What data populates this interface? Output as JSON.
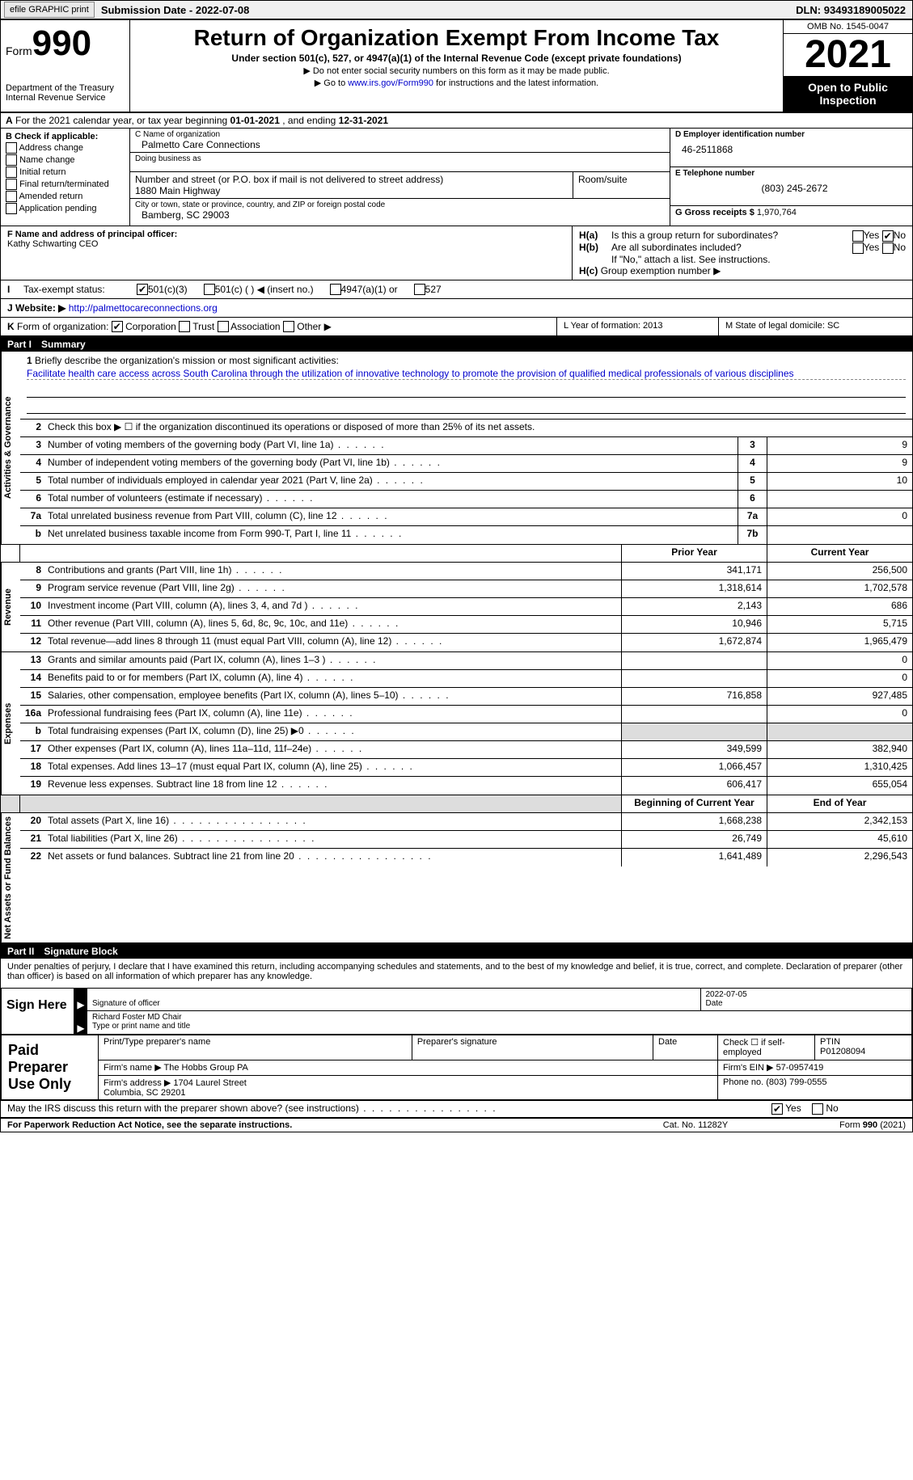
{
  "top": {
    "efile_btn": "efile GRAPHIC print",
    "sub_date_label": "Submission Date - ",
    "sub_date": "2022-07-08",
    "dln_label": "DLN: ",
    "dln": "93493189005022"
  },
  "header": {
    "form_label": "Form",
    "form_num": "990",
    "dept": "Department of the Treasury\nInternal Revenue Service",
    "title": "Return of Organization Exempt From Income Tax",
    "subtitle": "Under section 501(c), 527, or 4947(a)(1) of the Internal Revenue Code (except private foundations)",
    "note1": "▶ Do not enter social security numbers on this form as it may be made public.",
    "note2_pre": "▶ Go to ",
    "note2_link": "www.irs.gov/Form990",
    "note2_post": " for instructions and the latest information.",
    "omb": "OMB No. 1545-0047",
    "year": "2021",
    "inspect": "Open to Public Inspection"
  },
  "section_a": {
    "label_a": "A",
    "text_pre": "For the 2021 calendar year, or tax year beginning ",
    "begin": "01-01-2021",
    "mid": " , and ending ",
    "end": "12-31-2021"
  },
  "col_b": {
    "label": "B Check if applicable:",
    "opts": [
      "Address change",
      "Name change",
      "Initial return",
      "Final return/terminated",
      "Amended return",
      "Application pending"
    ]
  },
  "col_c": {
    "name_lbl": "C Name of organization",
    "name": "Palmetto Care Connections",
    "dba_lbl": "Doing business as",
    "dba": "",
    "addr_lbl": "Number and street (or P.O. box if mail is not delivered to street address)",
    "addr": "1880 Main Highway",
    "room_lbl": "Room/suite",
    "room": "",
    "city_lbl": "City or town, state or province, country, and ZIP or foreign postal code",
    "city": "Bamberg, SC  29003"
  },
  "col_d": {
    "ein_lbl": "D Employer identification number",
    "ein": "46-2511868",
    "phone_lbl": "E Telephone number",
    "phone": "(803) 245-2672",
    "gross_lbl": "G Gross receipts $ ",
    "gross": "1,970,764"
  },
  "row_f": {
    "lbl": "F Name and address of principal officer:",
    "val": "Kathy Schwarting CEO"
  },
  "row_h": {
    "ha_lbl": "H(a)",
    "ha_txt": "Is this a group return for subordinates?",
    "hb_lbl": "H(b)",
    "hb_txt": "Are all subordinates included?",
    "hb_note": "If \"No,\" attach a list. See instructions.",
    "hc_lbl": "H(c)",
    "hc_txt": "Group exemption number ▶",
    "yes": "Yes",
    "no": "No"
  },
  "row_i": {
    "lbl": "I",
    "txt": "Tax-exempt status:",
    "opts": [
      "501(c)(3)",
      "501(c) (  ) ◀ (insert no.)",
      "4947(a)(1) or",
      "527"
    ]
  },
  "row_j": {
    "lbl": "J",
    "txt": "Website: ▶",
    "url": "http://palmettocareconnections.org"
  },
  "row_k": {
    "lbl": "K",
    "txt": "Form of organization:",
    "opts": [
      "Corporation",
      "Trust",
      "Association",
      "Other ▶"
    ]
  },
  "row_l": {
    "txt": "L Year of formation: ",
    "val": "2013"
  },
  "row_m": {
    "txt": "M State of legal domicile: ",
    "val": "SC"
  },
  "part1": {
    "label": "Part I",
    "title": "Summary"
  },
  "mission": {
    "num": "1",
    "lbl": "Briefly describe the organization's mission or most significant activities:",
    "txt": "Facilitate health care access across South Carolina through the utilization of innovative technology to promote the provision of qualified medical professionals of various disciplines"
  },
  "line2": {
    "num": "2",
    "txt": "Check this box ▶ ☐ if the organization discontinued its operations or disposed of more than 25% of its net assets."
  },
  "vtabs": {
    "activities": "Activities & Governance",
    "revenue": "Revenue",
    "expenses": "Expenses",
    "netassets": "Net Assets or Fund Balances"
  },
  "summary_lines_top": [
    {
      "n": "3",
      "d": "Number of voting members of the governing body (Part VI, line 1a)",
      "box": "3",
      "v": "9"
    },
    {
      "n": "4",
      "d": "Number of independent voting members of the governing body (Part VI, line 1b)",
      "box": "4",
      "v": "9"
    },
    {
      "n": "5",
      "d": "Total number of individuals employed in calendar year 2021 (Part V, line 2a)",
      "box": "5",
      "v": "10"
    },
    {
      "n": "6",
      "d": "Total number of volunteers (estimate if necessary)",
      "box": "6",
      "v": ""
    },
    {
      "n": "7a",
      "d": "Total unrelated business revenue from Part VIII, column (C), line 12",
      "box": "7a",
      "v": "0"
    },
    {
      "n": "b",
      "d": "Net unrelated business taxable income from Form 990-T, Part I, line 11",
      "box": "7b",
      "v": ""
    }
  ],
  "col_headers": {
    "prior": "Prior Year",
    "current": "Current Year"
  },
  "revenue_lines": [
    {
      "n": "8",
      "d": "Contributions and grants (Part VIII, line 1h)",
      "p": "341,171",
      "c": "256,500"
    },
    {
      "n": "9",
      "d": "Program service revenue (Part VIII, line 2g)",
      "p": "1,318,614",
      "c": "1,702,578"
    },
    {
      "n": "10",
      "d": "Investment income (Part VIII, column (A), lines 3, 4, and 7d )",
      "p": "2,143",
      "c": "686"
    },
    {
      "n": "11",
      "d": "Other revenue (Part VIII, column (A), lines 5, 6d, 8c, 9c, 10c, and 11e)",
      "p": "10,946",
      "c": "5,715"
    },
    {
      "n": "12",
      "d": "Total revenue—add lines 8 through 11 (must equal Part VIII, column (A), line 12)",
      "p": "1,672,874",
      "c": "1,965,479"
    }
  ],
  "expense_lines": [
    {
      "n": "13",
      "d": "Grants and similar amounts paid (Part IX, column (A), lines 1–3 )",
      "p": "",
      "c": "0"
    },
    {
      "n": "14",
      "d": "Benefits paid to or for members (Part IX, column (A), line 4)",
      "p": "",
      "c": "0"
    },
    {
      "n": "15",
      "d": "Salaries, other compensation, employee benefits (Part IX, column (A), lines 5–10)",
      "p": "716,858",
      "c": "927,485"
    },
    {
      "n": "16a",
      "d": "Professional fundraising fees (Part IX, column (A), line 11e)",
      "p": "",
      "c": "0"
    },
    {
      "n": "b",
      "d": "Total fundraising expenses (Part IX, column (D), line 25) ▶0",
      "p": "shaded",
      "c": "shaded"
    },
    {
      "n": "17",
      "d": "Other expenses (Part IX, column (A), lines 11a–11d, 11f–24e)",
      "p": "349,599",
      "c": "382,940"
    },
    {
      "n": "18",
      "d": "Total expenses. Add lines 13–17 (must equal Part IX, column (A), line 25)",
      "p": "1,066,457",
      "c": "1,310,425"
    },
    {
      "n": "19",
      "d": "Revenue less expenses. Subtract line 18 from line 12",
      "p": "606,417",
      "c": "655,054"
    }
  ],
  "netassets_header": {
    "prior": "Beginning of Current Year",
    "current": "End of Year"
  },
  "netassets_lines": [
    {
      "n": "20",
      "d": "Total assets (Part X, line 16)",
      "p": "1,668,238",
      "c": "2,342,153"
    },
    {
      "n": "21",
      "d": "Total liabilities (Part X, line 26)",
      "p": "26,749",
      "c": "45,610"
    },
    {
      "n": "22",
      "d": "Net assets or fund balances. Subtract line 21 from line 20",
      "p": "1,641,489",
      "c": "2,296,543"
    }
  ],
  "part2": {
    "label": "Part II",
    "title": "Signature Block"
  },
  "sig": {
    "declaration": "Under penalties of perjury, I declare that I have examined this return, including accompanying schedules and statements, and to the best of my knowledge and belief, it is true, correct, and complete. Declaration of preparer (other than officer) is based on all information of which preparer has any knowledge.",
    "sign_here": "Sign Here",
    "sig_officer": "Signature of officer",
    "sig_date": "2022-07-05",
    "sig_date_lbl": "Date",
    "name_title": "Richard Foster MD Chair",
    "name_title_lbl": "Type or print name and title",
    "paid_prep": "Paid Preparer Use Only",
    "prep_name_lbl": "Print/Type preparer's name",
    "prep_name": "",
    "prep_sig_lbl": "Preparer's signature",
    "date_lbl": "Date",
    "check_self": "Check ☐ if self-employed",
    "ptin_lbl": "PTIN",
    "ptin": "P01208094",
    "firm_name_lbl": "Firm's name    ▶ ",
    "firm_name": "The Hobbs Group PA",
    "firm_ein_lbl": "Firm's EIN ▶ ",
    "firm_ein": "57-0957419",
    "firm_addr_lbl": "Firm's address ▶ ",
    "firm_addr": "1704 Laurel Street\nColumbia, SC  29201",
    "firm_phone_lbl": "Phone no. ",
    "firm_phone": "(803) 799-0555",
    "may_irs": "May the IRS discuss this return with the preparer shown above? (see instructions)",
    "yes": "Yes",
    "no": "No"
  },
  "footer": {
    "left": "For Paperwork Reduction Act Notice, see the separate instructions.",
    "mid": "Cat. No. 11282Y",
    "right": "Form 990 (2021)"
  }
}
